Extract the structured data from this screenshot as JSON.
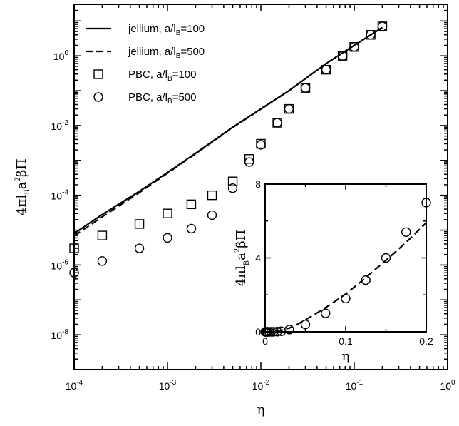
{
  "chart_data": [
    {
      "type": "line",
      "xscale": "log",
      "yscale": "log",
      "xlim": [
        0.0001,
        1
      ],
      "ylim": [
        1e-09,
        30
      ],
      "xlabel": "η",
      "ylabel": "4πl_B a²βΠ",
      "ylabel_parts": {
        "p1": "4πl",
        "p2": "B",
        "p3": "a",
        "p4": "2",
        "p5": "βΠ"
      },
      "grid": false,
      "legend_position": "top-left",
      "x_ticks": [
        {
          "value": 0.0001,
          "base": "10",
          "exp": "-4"
        },
        {
          "value": 0.001,
          "base": "10",
          "exp": "-3"
        },
        {
          "value": 0.01,
          "base": "10",
          "exp": "-2"
        },
        {
          "value": 0.1,
          "base": "10",
          "exp": "-1"
        },
        {
          "value": 1,
          "base": "10",
          "exp": "0"
        }
      ],
      "y_ticks": [
        {
          "value": 1e-08,
          "base": "10",
          "exp": "-8"
        },
        {
          "value": 1e-06,
          "base": "10",
          "exp": "-6"
        },
        {
          "value": 0.0001,
          "base": "10",
          "exp": "-4"
        },
        {
          "value": 0.01,
          "base": "10",
          "exp": "-2"
        },
        {
          "value": 1,
          "base": "10",
          "exp": "0"
        }
      ],
      "series": [
        {
          "name": "jellium, a/l_B=100",
          "legend": {
            "pre": "jellium, a/l",
            "sub": "B",
            "post": "=100"
          },
          "style": "solid",
          "x": [
            0.0001,
            0.0002,
            0.0005,
            0.001,
            0.002,
            0.005,
            0.01,
            0.02,
            0.05,
            0.1,
            0.2
          ],
          "y": [
            8e-06,
            2.8e-05,
            0.00013,
            0.00045,
            0.0016,
            0.009,
            0.03,
            0.1,
            0.6,
            2.0,
            6.5
          ]
        },
        {
          "name": "jellium, a/l_B=500",
          "legend": {
            "pre": "jellium, a/l",
            "sub": "B",
            "post": "=500"
          },
          "style": "dashed",
          "x": [
            0.0001,
            0.0002,
            0.0005,
            0.001,
            0.002,
            0.005,
            0.01,
            0.02,
            0.05,
            0.1,
            0.2
          ],
          "y": [
            6.8e-06,
            2.4e-05,
            0.00012,
            0.00043,
            0.00155,
            0.0088,
            0.0295,
            0.1,
            0.6,
            2.0,
            6.5
          ]
        },
        {
          "name": "PBC, a/l_B=100",
          "legend": {
            "pre": "PBC, a/l",
            "sub": "B",
            "post": "=100"
          },
          "marker": "square",
          "x": [
            0.0001,
            0.0002,
            0.0005,
            0.001,
            0.0018,
            0.003,
            0.005,
            0.0075,
            0.01,
            0.015,
            0.02,
            0.03,
            0.05,
            0.075,
            0.1,
            0.15,
            0.2
          ],
          "y": [
            3e-06,
            7e-06,
            1.5e-05,
            3e-05,
            5.5e-05,
            0.0001,
            0.00025,
            0.0011,
            0.003,
            0.012,
            0.03,
            0.12,
            0.4,
            1.0,
            1.8,
            4.0,
            7.0
          ]
        },
        {
          "name": "PBC, a/l_B=500",
          "legend": {
            "pre": "PBC, a/l",
            "sub": "B",
            "post": "=500"
          },
          "marker": "circle",
          "x": [
            0.0001,
            0.0002,
            0.0005,
            0.001,
            0.0018,
            0.003,
            0.005,
            0.0075,
            0.01,
            0.015,
            0.02,
            0.03,
            0.05,
            0.075,
            0.1,
            0.15,
            0.2
          ],
          "y": [
            6e-07,
            1.3e-06,
            3e-06,
            6e-06,
            1.1e-05,
            2.7e-05,
            0.00016,
            0.0009,
            0.0028,
            0.012,
            0.03,
            0.12,
            0.4,
            1.0,
            1.8,
            4.0,
            7.0
          ]
        }
      ]
    },
    {
      "type": "line",
      "inset": true,
      "xscale": "linear",
      "yscale": "linear",
      "xlim": [
        0,
        0.2
      ],
      "ylim": [
        0,
        8
      ],
      "xlabel": "η",
      "ylabel": "4πl_B a²βΠ",
      "ylabel_parts": {
        "p1": "4πl",
        "p2": "B",
        "p3": "a",
        "p4": "2",
        "p5": "βΠ"
      },
      "x_ticks": [
        {
          "value": 0,
          "label": "0"
        },
        {
          "value": 0.1,
          "label": "0.1"
        },
        {
          "value": 0.2,
          "label": "0.2"
        }
      ],
      "y_ticks": [
        {
          "value": 0,
          "label": "0"
        },
        {
          "value": 4,
          "label": "4"
        },
        {
          "value": 8,
          "label": "8"
        }
      ],
      "series": [
        {
          "style": "dashed",
          "x": [
            0,
            0.01,
            0.02,
            0.03,
            0.04,
            0.06,
            0.08,
            0.1,
            0.12,
            0.14,
            0.16,
            0.18,
            0.2
          ],
          "y": [
            0,
            0.02,
            0.08,
            0.2,
            0.4,
            0.9,
            1.45,
            2.05,
            2.75,
            3.5,
            4.25,
            5.05,
            5.9
          ]
        },
        {
          "marker": "circle",
          "x": [
            0.0002,
            0.0005,
            0.001,
            0.002,
            0.003,
            0.005,
            0.0075,
            0.01,
            0.015,
            0.02,
            0.03,
            0.05,
            0.075,
            0.1,
            0.125,
            0.15,
            0.175,
            0.2
          ],
          "y": [
            0,
            0,
            0,
            0,
            0,
            0,
            0,
            0,
            0.01,
            0.03,
            0.12,
            0.4,
            1.0,
            1.8,
            2.8,
            4.0,
            5.4,
            7.0
          ]
        }
      ]
    }
  ]
}
